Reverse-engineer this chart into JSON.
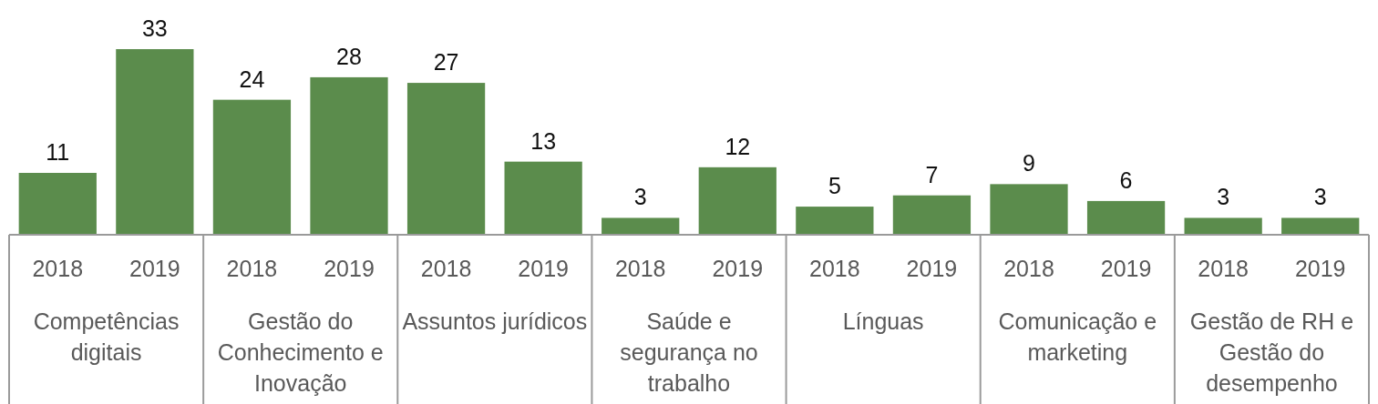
{
  "chart_data": {
    "type": "bar",
    "categories": [
      "2018",
      "2019",
      "2018",
      "2019",
      "2018",
      "2019",
      "2018",
      "2019",
      "2018",
      "2019",
      "2018",
      "2019",
      "2018",
      "2019"
    ],
    "values": [
      11,
      33,
      24,
      28,
      27,
      13,
      3,
      12,
      5,
      7,
      9,
      6,
      3,
      3
    ],
    "color": "#5b8c4c",
    "data_labels": true,
    "annotations": [
      "Competências digitais",
      "Gestão do Conhecimento e Inovação",
      "Assuntos jurídicos",
      "Saúde e segurança no trabalho",
      "Línguas",
      "Comunicação e marketing",
      "Gestão de RH e Gestão do desempenho"
    ]
  }
}
